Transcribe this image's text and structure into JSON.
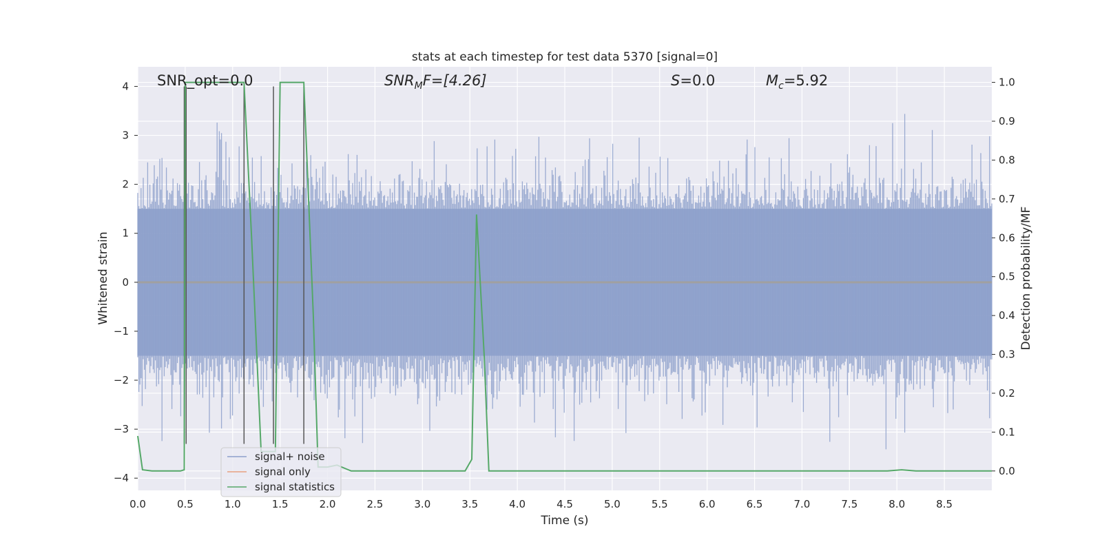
{
  "chart_data": {
    "type": "line",
    "title": "stats at each timestep for test data 5370 [signal=0]",
    "xlabel": "Time (s)",
    "ylabel_left": "Whitened strain",
    "ylabel_right": "Detection probability/MF",
    "xlim": [
      0.0,
      9.0
    ],
    "ylim_left": [
      -4.25,
      4.4
    ],
    "ylim_right": [
      -0.05,
      1.04
    ],
    "x_ticks": [
      "0.0",
      "0.5",
      "1.0",
      "1.5",
      "2.0",
      "2.5",
      "3.0",
      "3.5",
      "4.0",
      "4.5",
      "5.0",
      "5.5",
      "6.0",
      "6.5",
      "7.0",
      "7.5",
      "8.0",
      "8.5"
    ],
    "y_ticks_left": [
      "4",
      "3",
      "2",
      "1",
      "0",
      "−1",
      "−2",
      "−3",
      "−4"
    ],
    "y_ticks_right": [
      "1.0",
      "0.9",
      "0.8",
      "0.7",
      "0.6",
      "0.5",
      "0.4",
      "0.3",
      "0.2",
      "0.1",
      "0.0"
    ],
    "grid": true,
    "legend_position": "lower-left",
    "annotations": {
      "snr_opt": "SNR_opt=0.0",
      "snr_mf_main": "SNR",
      "snr_mf_sub": "M",
      "snr_mf_rest": "F=[4.26]",
      "s_main": "S",
      "s_rest": "=0.0",
      "mc_main": "M",
      "mc_sub": "c",
      "mc_rest": "=5.92"
    },
    "series": [
      {
        "name": "signal+ noise",
        "color": "#8da0cb",
        "axis": "left",
        "description_values": "noise band approx between -1.6 and 1.7 with spikes up to about 4 and down to about -3.9"
      },
      {
        "name": "signal only",
        "color": "#e8a07f",
        "axis": "left",
        "x": [
          0.0,
          9.0
        ],
        "y": [
          0.0,
          0.0
        ]
      },
      {
        "name": "signal statistics",
        "color": "#55a868",
        "axis": "right",
        "x": [
          0.0,
          0.05,
          0.15,
          0.3,
          0.45,
          0.49,
          0.5,
          0.55,
          0.6,
          1.0,
          1.1,
          1.12,
          1.2,
          1.3,
          1.4,
          1.45,
          1.5,
          1.55,
          1.7,
          1.75,
          1.85,
          1.9,
          2.0,
          2.1,
          2.2,
          2.25,
          2.5,
          3.0,
          3.45,
          3.52,
          3.57,
          3.65,
          3.7,
          4.0,
          5.0,
          6.0,
          7.0,
          7.9,
          8.05,
          8.2,
          9.0
        ],
        "y": [
          0.09,
          0.003,
          0.0,
          0.0,
          0.0,
          0.003,
          1.0,
          1.0,
          1.0,
          1.0,
          1.0,
          1.0,
          0.6,
          0.05,
          0.05,
          0.05,
          1.0,
          1.0,
          1.0,
          1.0,
          0.4,
          0.01,
          0.01,
          0.015,
          0.005,
          0.0,
          0.0,
          0.0,
          0.0,
          0.03,
          0.66,
          0.3,
          0.0,
          0.0,
          0.0,
          0.0,
          0.0,
          0.0,
          0.003,
          0.0,
          0.0
        ]
      }
    ],
    "vertical_markers": [
      {
        "x": 0.49,
        "color": "#555555"
      },
      {
        "x": 0.51,
        "color": "#555555"
      },
      {
        "x": 1.12,
        "color": "#555555"
      },
      {
        "x": 1.43,
        "color": "#555555"
      },
      {
        "x": 1.75,
        "color": "#555555"
      }
    ]
  }
}
